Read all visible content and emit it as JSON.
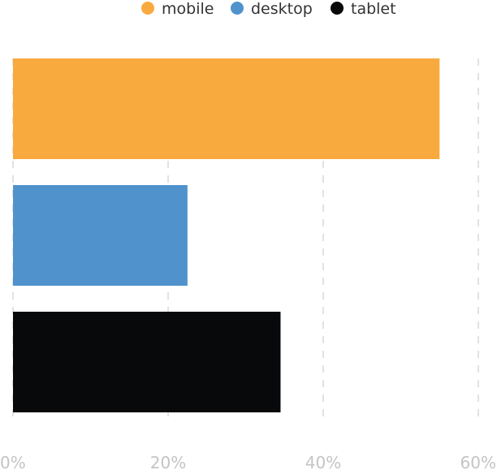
{
  "chart_data": {
    "type": "bar",
    "orientation": "horizontal",
    "categories": [
      "mobile",
      "desktop",
      "tablet"
    ],
    "values": [
      55,
      22.5,
      34.5
    ],
    "colors": [
      "#f9aa3f",
      "#5093cc",
      "#08090b"
    ],
    "xlim": [
      0,
      60
    ],
    "x_ticks": [
      0,
      20,
      40,
      60
    ],
    "x_tick_labels": [
      "0%",
      "20%",
      "40%",
      "60%"
    ],
    "grid": true,
    "legend": {
      "position": "top-right",
      "entries": [
        {
          "label": "mobile",
          "color": "#f9aa3f"
        },
        {
          "label": "desktop",
          "color": "#5093cc"
        },
        {
          "label": "tablet",
          "color": "#08090b"
        }
      ]
    },
    "title": "",
    "xlabel": "",
    "ylabel": ""
  }
}
